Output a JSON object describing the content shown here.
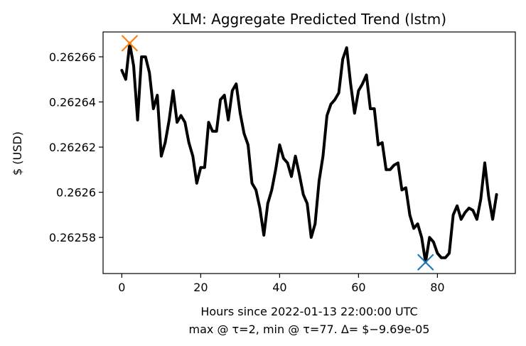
{
  "chart_data": {
    "type": "line",
    "title": "XLM: Aggregate Predicted Trend (lstm)",
    "xlabel": "Hours since 2022-01-13 22:00:00 UTC",
    "xlabel2": "max @ τ=2, min @ τ=77. Δ= $−9.69e-05",
    "ylabel": "$ (USD)",
    "xlim": [
      -4.75,
      99.75
    ],
    "ylim": [
      0.262564,
      0.262671
    ],
    "x_ticks": [
      0,
      20,
      40,
      60,
      80
    ],
    "x_tick_labels": [
      "0",
      "20",
      "40",
      "60",
      "80"
    ],
    "y_ticks": [
      0.26258,
      0.2626,
      0.26262,
      0.26264,
      0.26266
    ],
    "y_tick_labels": [
      "0.26258",
      "0.2626",
      "0.26262",
      "0.26264",
      "0.26266"
    ],
    "series": [
      {
        "color": "#000000",
        "x": [
          0,
          1,
          2,
          3,
          4,
          5,
          6,
          7,
          8,
          9,
          10,
          11,
          12,
          13,
          14,
          15,
          16,
          17,
          18,
          19,
          20,
          21,
          22,
          23,
          24,
          25,
          26,
          27,
          28,
          29,
          30,
          31,
          32,
          33,
          34,
          35,
          36,
          37,
          38,
          39,
          40,
          41,
          42,
          43,
          44,
          45,
          46,
          47,
          48,
          49,
          50,
          51,
          52,
          53,
          54,
          55,
          56,
          57,
          58,
          59,
          60,
          61,
          62,
          63,
          64,
          65,
          66,
          67,
          68,
          69,
          70,
          71,
          72,
          73,
          74,
          75,
          76,
          77,
          78,
          79,
          80,
          81,
          82,
          83,
          84,
          85,
          86,
          87,
          88,
          89,
          90,
          91,
          92,
          93,
          94,
          95
        ],
        "values": [
          0.262654,
          0.26265,
          0.262666,
          0.262656,
          0.262632,
          0.26266,
          0.26266,
          0.262653,
          0.262637,
          0.262643,
          0.262616,
          0.262622,
          0.262632,
          0.262645,
          0.262631,
          0.262634,
          0.262631,
          0.262622,
          0.262616,
          0.262604,
          0.262611,
          0.262611,
          0.262631,
          0.262627,
          0.262627,
          0.262641,
          0.262643,
          0.262632,
          0.262645,
          0.262648,
          0.262635,
          0.262626,
          0.262621,
          0.262604,
          0.262601,
          0.262593,
          0.262581,
          0.262595,
          0.262601,
          0.26261,
          0.262621,
          0.262615,
          0.262613,
          0.262607,
          0.262616,
          0.262608,
          0.262599,
          0.262595,
          0.26258,
          0.262586,
          0.262605,
          0.262616,
          0.262634,
          0.262639,
          0.262641,
          0.262644,
          0.262659,
          0.262664,
          0.262648,
          0.262635,
          0.262645,
          0.262648,
          0.262652,
          0.262637,
          0.262637,
          0.262621,
          0.262622,
          0.26261,
          0.26261,
          0.262612,
          0.262613,
          0.262601,
          0.262602,
          0.26259,
          0.262584,
          0.262586,
          0.26258,
          0.262569,
          0.26258,
          0.262578,
          0.262573,
          0.262571,
          0.262571,
          0.262573,
          0.26259,
          0.262594,
          0.262588,
          0.262591,
          0.262593,
          0.262592,
          0.262588,
          0.262597,
          0.262613,
          0.262598,
          0.262588,
          0.262599
        ]
      }
    ],
    "markers": [
      {
        "label": "max",
        "x": 2,
        "y": 0.262666,
        "shape": "x",
        "color": "#ff7f0e"
      },
      {
        "label": "min",
        "x": 77,
        "y": 0.262569,
        "shape": "x",
        "color": "#1f77b4"
      }
    ],
    "grid": false,
    "legend": "none"
  }
}
